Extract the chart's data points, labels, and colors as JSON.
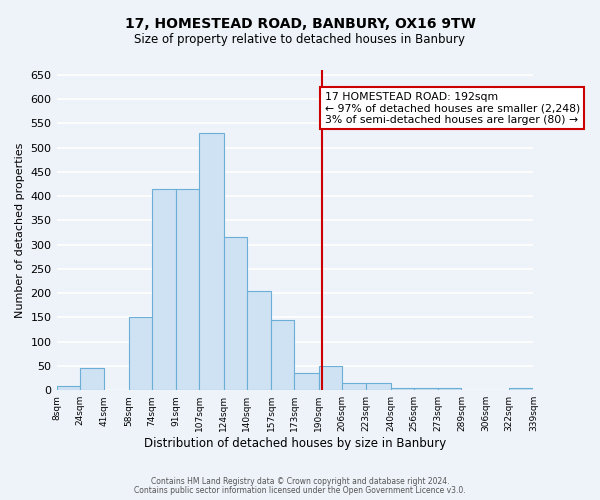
{
  "title": "17, HOMESTEAD ROAD, BANBURY, OX16 9TW",
  "subtitle": "Size of property relative to detached houses in Banbury",
  "xlabel": "Distribution of detached houses by size in Banbury",
  "ylabel": "Number of detached properties",
  "bin_edges": [
    8,
    24,
    41,
    58,
    74,
    91,
    107,
    124,
    140,
    157,
    173,
    190,
    206,
    223,
    240,
    256,
    273,
    289,
    306,
    322,
    339
  ],
  "counts": [
    8,
    45,
    0,
    150,
    415,
    415,
    530,
    315,
    205,
    145,
    35,
    50,
    15,
    15,
    5,
    5,
    5,
    0,
    0,
    5
  ],
  "bar_facecolor": "#cfe2f3",
  "bar_edgecolor": "#6baed6",
  "vline_x": 192,
  "vline_color": "#cc0000",
  "annotation_title": "17 HOMESTEAD ROAD: 192sqm",
  "annotation_line1": "← 97% of detached houses are smaller (2,248)",
  "annotation_line2": "3% of semi-detached houses are larger (80) →",
  "annotation_box_facecolor": "#ffffff",
  "annotation_box_edgecolor": "#cc0000",
  "ylim": [
    0,
    660
  ],
  "yticks": [
    0,
    50,
    100,
    150,
    200,
    250,
    300,
    350,
    400,
    450,
    500,
    550,
    600,
    650
  ],
  "footnote1": "Contains HM Land Registry data © Crown copyright and database right 2024.",
  "footnote2": "Contains public sector information licensed under the Open Government Licence v3.0.",
  "bg_color": "#eef2f9",
  "grid_color": "#ffffff"
}
